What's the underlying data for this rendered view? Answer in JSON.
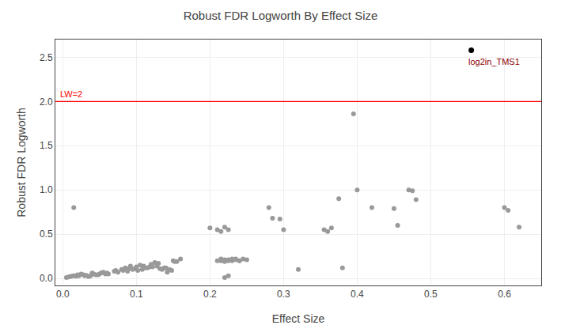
{
  "chart_data": {
    "type": "scatter",
    "title": "Robust FDR Logworth By Effect Size",
    "xlabel": "Effect Size",
    "ylabel": "Robust FDR Logworth",
    "xlim": [
      -0.01,
      0.65
    ],
    "ylim": [
      -0.08,
      2.7
    ],
    "xticks": [
      {
        "value": 0.0,
        "label": "0.0"
      },
      0.1,
      0.2,
      0.3,
      0.4,
      0.5,
      0.6
    ],
    "yticks": [
      {
        "value": 0.0,
        "label": "0.0"
      },
      0.5,
      {
        "value": 1.0,
        "label": "1.0"
      },
      1.5,
      {
        "value": 2.0,
        "label": "2.0"
      },
      2.5
    ],
    "grid": true,
    "series": [
      {
        "color": "#999999",
        "marker": "circle",
        "x": [
          0.005,
          0.008,
          0.01,
          0.012,
          0.015,
          0.018,
          0.02,
          0.022,
          0.025,
          0.028,
          0.03,
          0.032,
          0.035,
          0.038,
          0.04,
          0.042,
          0.045,
          0.048,
          0.05,
          0.052,
          0.055,
          0.058,
          0.06,
          0.062,
          0.015,
          0.07,
          0.072,
          0.075,
          0.08,
          0.082,
          0.085,
          0.088,
          0.09,
          0.092,
          0.095,
          0.098,
          0.1,
          0.102,
          0.105,
          0.108,
          0.11,
          0.112,
          0.115,
          0.118,
          0.12,
          0.122,
          0.125,
          0.128,
          0.13,
          0.132,
          0.135,
          0.138,
          0.14,
          0.142,
          0.145,
          0.148,
          0.15,
          0.152,
          0.155,
          0.16,
          0.2,
          0.21,
          0.215,
          0.22,
          0.225,
          0.21,
          0.215,
          0.22,
          0.225,
          0.23,
          0.235,
          0.24,
          0.245,
          0.25,
          0.215,
          0.22,
          0.225,
          0.23,
          0.235,
          0.24,
          0.22,
          0.225,
          0.28,
          0.285,
          0.295,
          0.3,
          0.32,
          0.355,
          0.36,
          0.365,
          0.375,
          0.38,
          0.395,
          0.4,
          0.42,
          0.45,
          0.455,
          0.47,
          0.475,
          0.48,
          0.6,
          0.605,
          0.62
        ],
        "values": [
          0.01,
          0.015,
          0.02,
          0.025,
          0.03,
          0.025,
          0.04,
          0.03,
          0.05,
          0.04,
          0.03,
          0.035,
          0.02,
          0.03,
          0.06,
          0.05,
          0.04,
          0.04,
          0.05,
          0.06,
          0.07,
          0.05,
          0.06,
          0.05,
          0.8,
          0.08,
          0.09,
          0.07,
          0.1,
          0.09,
          0.12,
          0.08,
          0.11,
          0.14,
          0.1,
          0.11,
          0.13,
          0.09,
          0.15,
          0.1,
          0.14,
          0.12,
          0.12,
          0.13,
          0.16,
          0.13,
          0.18,
          0.14,
          0.17,
          0.11,
          0.1,
          0.12,
          0.12,
          0.07,
          0.1,
          0.09,
          0.2,
          0.19,
          0.19,
          0.22,
          0.57,
          0.55,
          0.53,
          0.58,
          0.55,
          0.2,
          0.22,
          0.21,
          0.2,
          0.22,
          0.21,
          0.2,
          0.22,
          0.21,
          0.2,
          0.19,
          0.21,
          0.2,
          0.22,
          0.2,
          0.01,
          0.03,
          0.8,
          0.68,
          0.67,
          0.55,
          0.1,
          0.55,
          0.53,
          0.57,
          0.9,
          0.12,
          1.86,
          1.0,
          0.8,
          0.79,
          0.6,
          1.0,
          0.99,
          0.89,
          0.8,
          0.77,
          0.58
        ]
      },
      {
        "color": "#000000",
        "marker": "circle",
        "x": [
          0.555
        ],
        "values": [
          2.58
        ]
      }
    ],
    "annotations": [
      {
        "text": "log2in_TMS1",
        "x": 0.555,
        "y": 2.58,
        "color": "#8B0000"
      }
    ],
    "lines": [
      {
        "y": 2.0,
        "label": "LW=2",
        "color": "red"
      }
    ]
  }
}
